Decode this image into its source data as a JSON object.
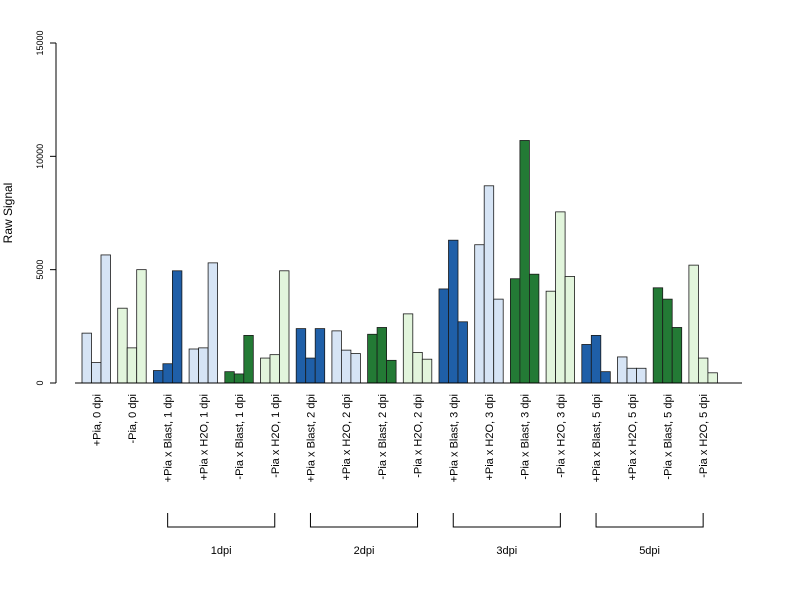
{
  "chart_data": {
    "type": "bar",
    "ylabel": "Raw Signal",
    "ylim": [
      0,
      15000
    ],
    "yticks": [
      "0",
      "5000",
      "10000",
      "15000"
    ],
    "grid": false,
    "legend": "none",
    "categories": [
      "+Pia, 0 dpi",
      "-Pia, 0 dpi",
      "+Pia x Blast, 1 dpi",
      "+Pia x H2O, 1 dpi",
      "-Pia x Blast, 1 dpi",
      "-Pia x H2O, 1 dpi",
      "+Pia x Blast, 2 dpi",
      "+Pia x H2O, 2 dpi",
      "-Pia x Blast, 2 dpi",
      "-Pia x H2O, 2 dpi",
      "+Pia x Blast, 3 dpi",
      "+Pia x H2O, 3 dpi",
      "-Pia x Blast, 3 dpi",
      "-Pia x H2O, 3 dpi",
      "+Pia x Blast, 5 dpi",
      "+Pia x H2O, 5 dpi",
      "-Pia x Blast, 5 dpi",
      "-Pia x H2O, 5 dpi"
    ],
    "colors": [
      "#d6e4f5",
      "#e2f5dc",
      "#1f5fa8",
      "#d6e4f5",
      "#237a35",
      "#e2f5dc",
      "#1f5fa8",
      "#d6e4f5",
      "#237a35",
      "#e2f5dc",
      "#1f5fa8",
      "#d6e4f5",
      "#237a35",
      "#e2f5dc",
      "#1f5fa8",
      "#d6e4f5",
      "#237a35",
      "#e2f5dc"
    ],
    "values": [
      [
        2200,
        900,
        5650
      ],
      [
        3300,
        1550,
        5000
      ],
      [
        550,
        850,
        4950
      ],
      [
        1500,
        1550,
        5300
      ],
      [
        500,
        400,
        2100
      ],
      [
        1100,
        1250,
        4950
      ],
      [
        2400,
        1100,
        2400
      ],
      [
        2300,
        1450,
        1300
      ],
      [
        2150,
        2450,
        1000
      ],
      [
        3050,
        1350,
        1050
      ],
      [
        4150,
        6300,
        2700
      ],
      [
        6100,
        8700,
        3700
      ],
      [
        4600,
        10700,
        4800
      ],
      [
        4050,
        7550,
        4700
      ],
      [
        1700,
        2100,
        500
      ],
      [
        1150,
        650,
        650
      ],
      [
        4200,
        3700,
        2450
      ],
      [
        5200,
        1100,
        450
      ]
    ],
    "groups": [
      {
        "label": "1dpi",
        "categories": [
          2,
          5
        ]
      },
      {
        "label": "2dpi",
        "categories": [
          6,
          9
        ]
      },
      {
        "label": "3dpi",
        "categories": [
          10,
          13
        ]
      },
      {
        "label": "5dpi",
        "categories": [
          14,
          17
        ]
      }
    ]
  }
}
